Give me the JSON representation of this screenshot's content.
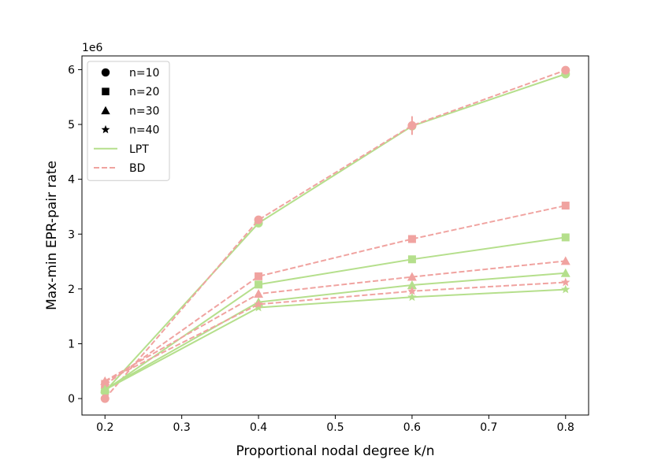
{
  "chart_data": {
    "type": "line",
    "xlabel": "Proportional nodal degree k/n",
    "ylabel": "Max-min EPR-pair rate",
    "y_offset_label": "1e6",
    "xlim": [
      0.17,
      0.83
    ],
    "ylim": [
      -0.3,
      6.25
    ],
    "xticks": [
      0.2,
      0.3,
      0.4,
      0.5,
      0.6,
      0.7,
      0.8
    ],
    "xtick_labels": [
      "0.2",
      "0.3",
      "0.4",
      "0.5",
      "0.6",
      "0.7",
      "0.8"
    ],
    "yticks": [
      0,
      1,
      2,
      3,
      4,
      5,
      6
    ],
    "ytick_labels": [
      "0",
      "1",
      "2",
      "3",
      "4",
      "5",
      "6"
    ],
    "grid": false,
    "legend_position": "top-left",
    "colors": {
      "LPT": "#b5df8c",
      "BD": "#f0a3a0"
    },
    "x": [
      0.2,
      0.4,
      0.6,
      0.8
    ],
    "series": [
      {
        "method": "LPT",
        "n": 10,
        "marker": "circle",
        "values": [
          0.13,
          3.2,
          4.97,
          5.92
        ]
      },
      {
        "method": "BD",
        "n": 10,
        "marker": "circle",
        "values": [
          0.0,
          3.26,
          4.98,
          5.99
        ],
        "error_bars": [
          0,
          0,
          0.17,
          0
        ]
      },
      {
        "method": "LPT",
        "n": 20,
        "marker": "square",
        "values": [
          0.15,
          2.08,
          2.54,
          2.94
        ]
      },
      {
        "method": "BD",
        "n": 20,
        "marker": "square",
        "values": [
          0.25,
          2.23,
          2.91,
          3.52
        ]
      },
      {
        "method": "LPT",
        "n": 30,
        "marker": "triangle",
        "values": [
          0.17,
          1.76,
          2.07,
          2.29
        ]
      },
      {
        "method": "BD",
        "n": 30,
        "marker": "triangle",
        "values": [
          0.32,
          1.91,
          2.22,
          2.51
        ]
      },
      {
        "method": "LPT",
        "n": 40,
        "marker": "star",
        "values": [
          0.16,
          1.66,
          1.85,
          1.99
        ]
      },
      {
        "method": "BD",
        "n": 40,
        "marker": "star",
        "values": [
          0.31,
          1.72,
          1.96,
          2.12
        ]
      }
    ],
    "legend": [
      {
        "label": "n=10",
        "kind": "marker",
        "marker": "circle"
      },
      {
        "label": "n=20",
        "kind": "marker",
        "marker": "square"
      },
      {
        "label": "n=30",
        "kind": "marker",
        "marker": "triangle"
      },
      {
        "label": "n=40",
        "kind": "marker",
        "marker": "star"
      },
      {
        "label": "LPT",
        "kind": "line",
        "dashed": false
      },
      {
        "label": "BD",
        "kind": "line",
        "dashed": true
      }
    ]
  }
}
